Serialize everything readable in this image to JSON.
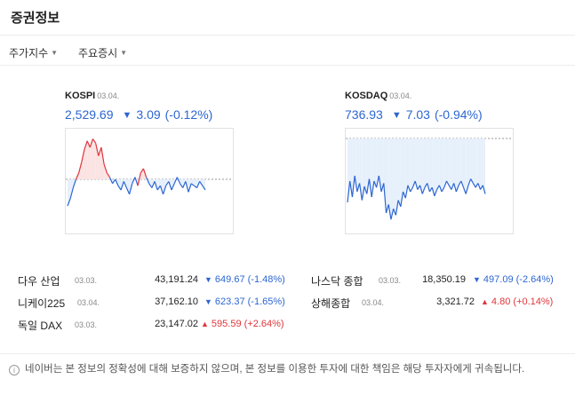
{
  "header": {
    "title": "증권정보"
  },
  "tabs": [
    {
      "label": "주가지수"
    },
    {
      "label": "주요증시"
    }
  ],
  "colors": {
    "down": "#2d66d2",
    "up": "#e0353b",
    "fill_down": "#e6f0fb",
    "fill_up": "#fbe3e3"
  },
  "indices": {
    "kospi": {
      "name": "KOSPI",
      "date": "03.04.",
      "price": "2,529.69",
      "arrow": "▼",
      "change": "3.09",
      "percent": "(-0.12%)"
    },
    "kosdaq": {
      "name": "KOSDAQ",
      "date": "03.04.",
      "price": "736.93",
      "arrow": "▼",
      "change": "7.03",
      "percent": "(-0.94%)"
    }
  },
  "world": [
    {
      "name": "다우 산업",
      "date": "03.03.",
      "value": "43,191.24",
      "arrow": "▼",
      "change": "649.67",
      "percent": "(-1.48%)",
      "dir": "down"
    },
    {
      "name": "나스닥 종합",
      "date": "03.03.",
      "value": "18,350.19",
      "arrow": "▼",
      "change": "497.09",
      "percent": "(-2.64%)",
      "dir": "down"
    },
    {
      "name": "니케이225",
      "date": "03.04.",
      "value": "37,162.10",
      "arrow": "▼",
      "change": "623.37",
      "percent": "(-1.65%)",
      "dir": "down"
    },
    {
      "name": "상해종합",
      "date": "03.04.",
      "value": "3,321.72",
      "arrow": "▲",
      "change": "4.80",
      "percent": "(+0.14%)",
      "dir": "up"
    },
    {
      "name": "독일 DAX",
      "date": "03.03.",
      "value": "23,147.02",
      "arrow": "▲",
      "change": "595.59",
      "percent": "(+2.64%)",
      "dir": "up"
    }
  ],
  "notice": {
    "icon": "info-icon",
    "text": "네이버는 본 정보의 정확성에 대해 보증하지 않으며, 본 정보를 이용한 투자에 대한 책임은 해당 투자자에게 귀속됩니다."
  },
  "chart_data": [
    {
      "type": "line",
      "name": "KOSPI",
      "baseline": "previous-close",
      "values": [
        -25,
        -18,
        -8,
        0,
        6,
        16,
        28,
        36,
        30,
        38,
        34,
        22,
        30,
        14,
        6,
        2,
        -4,
        0,
        -6,
        -10,
        -2,
        -8,
        -14,
        -4,
        2,
        -6,
        6,
        10,
        2,
        -4,
        -8,
        -2,
        -10,
        -6,
        -14,
        -6,
        -2,
        -10,
        -4,
        2,
        -4,
        -8,
        -2,
        -12,
        -4,
        -6,
        -8,
        -2,
        -6,
        -10
      ]
    },
    {
      "type": "line",
      "name": "KOSDAQ",
      "baseline": "previous-close",
      "values": [
        -60,
        -40,
        -55,
        -35,
        -50,
        -42,
        -58,
        -45,
        -52,
        -38,
        -55,
        -40,
        -46,
        -35,
        -50,
        -42,
        -70,
        -62,
        -76,
        -66,
        -72,
        -58,
        -64,
        -50,
        -56,
        -44,
        -50,
        -46,
        -40,
        -48,
        -44,
        -52,
        -46,
        -42,
        -50,
        -46,
        -54,
        -48,
        -44,
        -50,
        -46,
        -40,
        -44,
        -48,
        -42,
        -50,
        -44,
        -40,
        -46,
        -52,
        -44,
        -38,
        -42,
        -46,
        -42,
        -48,
        -44,
        -52
      ]
    }
  ]
}
